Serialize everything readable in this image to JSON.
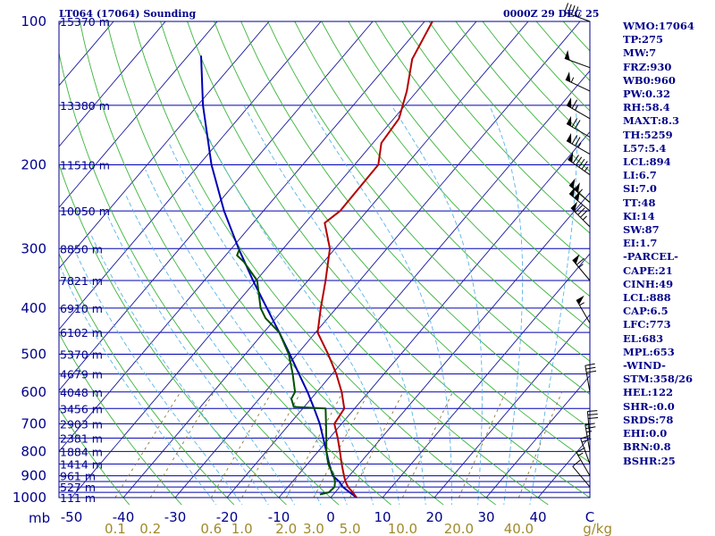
{
  "header": {
    "station": "LT064 (17064) Sounding",
    "time": "0000Z 29 DEC 25"
  },
  "indices": [
    "WMO:17064",
    "TP:275",
    "MW:7",
    "FRZ:930",
    "WB0:960",
    "PW:0.32",
    "RH:58.4",
    "MAXT:8.3",
    "TH:5259",
    "L57:5.4",
    "LCL:894",
    "LI:6.7",
    "SI:7.0",
    "TT:48",
    "KI:14",
    "SW:87",
    "EI:1.7",
    "-PARCEL-",
    "CAPE:21",
    "CINH:49",
    "LCL:888",
    "CAP:6.5",
    "LFC:773",
    "EL:683",
    "MPL:653",
    "-WIND-",
    "STM:358/26",
    "HEL:122",
    "SHR-:0.0",
    "SRDS:78",
    "EHI:0.0",
    "BRN:0.8",
    "BSHR:25"
  ],
  "colors": {
    "axis": "#00008b",
    "isobar": "#0000b0",
    "isotherm": "#1a1aa0",
    "dry_adiabat": "#3cb43c",
    "moist_adiabat": "#5ab4e6",
    "mixing_ratio": "#8c7a3c",
    "temperature": "#b40000",
    "dewpoint": "#005000",
    "parcel": "#0000b4",
    "wind_barb": "#000000"
  },
  "chart_data": {
    "type": "skew-t",
    "pressure_axis": {
      "unit": "mb",
      "ticks": [
        100,
        200,
        300,
        400,
        500,
        600,
        700,
        800,
        900,
        1000
      ]
    },
    "temperature_axis": {
      "ticks": [
        -50,
        -40,
        -30,
        -20,
        -10,
        0,
        10,
        20,
        30,
        40
      ],
      "tick_labels": [
        "-50",
        "-40",
        "-30",
        "-20",
        "-10",
        "0",
        "10",
        "20",
        "30",
        "40"
      ],
      "end_label": "C"
    },
    "mixing_ratio_axis": {
      "ticks": [
        0.1,
        0.2,
        0.6,
        1.0,
        2.0,
        3.0,
        5.0,
        10.0,
        20.0,
        40.0
      ],
      "tick_labels": [
        "0.1",
        "0.2",
        "0.6",
        "1.0",
        "2.0",
        "3.0",
        "5.0",
        "10.0",
        "20.0",
        "40.0"
      ],
      "unit": "g/kg"
    },
    "isobars": [
      100,
      150,
      200,
      250,
      300,
      350,
      400,
      450,
      500,
      550,
      600,
      650,
      700,
      750,
      800,
      850,
      900,
      925,
      950,
      975,
      1000
    ],
    "heights": [
      {
        "p": 100,
        "label": "15370 m"
      },
      {
        "p": 150,
        "label": "13380 m"
      },
      {
        "p": 200,
        "label": "11510 m"
      },
      {
        "p": 250,
        "label": "10050 m"
      },
      {
        "p": 300,
        "label": "8850 m"
      },
      {
        "p": 350,
        "label": "7821 m"
      },
      {
        "p": 400,
        "label": "6910 m"
      },
      {
        "p": 450,
        "label": "6102 m"
      },
      {
        "p": 500,
        "label": "5370 m"
      },
      {
        "p": 550,
        "label": "4679 m"
      },
      {
        "p": 600,
        "label": "4048 m"
      },
      {
        "p": 650,
        "label": "3456 m"
      },
      {
        "p": 700,
        "label": "2903 m"
      },
      {
        "p": 750,
        "label": "2381 m"
      },
      {
        "p": 800,
        "label": "1884 m"
      },
      {
        "p": 850,
        "label": "1414 m"
      },
      {
        "p": 900,
        "label": "961 m"
      },
      {
        "p": 950,
        "label": "527 m"
      },
      {
        "p": 1000,
        "label": "111 m"
      }
    ],
    "temperature_profile": [
      {
        "p": 1000,
        "t": 5.0
      },
      {
        "p": 975,
        "t": 3.4
      },
      {
        "p": 950,
        "t": 1.6
      },
      {
        "p": 925,
        "t": 0.2
      },
      {
        "p": 900,
        "t": -1.0
      },
      {
        "p": 850,
        "t": -3.4
      },
      {
        "p": 800,
        "t": -5.8
      },
      {
        "p": 750,
        "t": -8.4
      },
      {
        "p": 700,
        "t": -11.4
      },
      {
        "p": 650,
        "t": -12.0
      },
      {
        "p": 600,
        "t": -15.2
      },
      {
        "p": 550,
        "t": -19.2
      },
      {
        "p": 500,
        "t": -24.0
      },
      {
        "p": 450,
        "t": -29.6
      },
      {
        "p": 400,
        "t": -33.0
      },
      {
        "p": 350,
        "t": -36.6
      },
      {
        "p": 300,
        "t": -41.0
      },
      {
        "p": 265,
        "t": -46.2
      },
      {
        "p": 250,
        "t": -45.2
      },
      {
        "p": 200,
        "t": -45.4
      },
      {
        "p": 180,
        "t": -48.4
      },
      {
        "p": 160,
        "t": -49.0
      },
      {
        "p": 140,
        "t": -52.0
      },
      {
        "p": 120,
        "t": -56.2
      },
      {
        "p": 100,
        "t": -58.5
      },
      {
        "p": 85,
        "t": -60.5
      }
    ],
    "dewpoint_profile": [
      {
        "p": 985,
        "t": -2.6
      },
      {
        "p": 975,
        "t": -1.2
      },
      {
        "p": 950,
        "t": -1.0
      },
      {
        "p": 925,
        "t": -1.8
      },
      {
        "p": 900,
        "t": -3.0
      },
      {
        "p": 850,
        "t": -6.0
      },
      {
        "p": 800,
        "t": -8.4
      },
      {
        "p": 750,
        "t": -10.6
      },
      {
        "p": 700,
        "t": -13.0
      },
      {
        "p": 650,
        "t": -15.6
      },
      {
        "p": 645,
        "t": -22.0
      },
      {
        "p": 620,
        "t": -23.8
      },
      {
        "p": 600,
        "t": -24.2
      },
      {
        "p": 550,
        "t": -27.6
      },
      {
        "p": 500,
        "t": -31.6
      },
      {
        "p": 450,
        "t": -37.0
      },
      {
        "p": 420,
        "t": -42.0
      },
      {
        "p": 400,
        "t": -44.6
      },
      {
        "p": 350,
        "t": -49.8
      },
      {
        "p": 320,
        "t": -55.4
      },
      {
        "p": 310,
        "t": -57.8
      },
      {
        "p": 300,
        "t": -58.4
      }
    ],
    "parcel_profile": [
      {
        "p": 1000,
        "t": 5.0
      },
      {
        "p": 975,
        "t": 2.8
      },
      {
        "p": 950,
        "t": 0.6
      },
      {
        "p": 925,
        "t": -1.0
      },
      {
        "p": 900,
        "t": -3.2
      },
      {
        "p": 850,
        "t": -5.8
      },
      {
        "p": 800,
        "t": -8.4
      },
      {
        "p": 750,
        "t": -11.2
      },
      {
        "p": 700,
        "t": -14.2
      },
      {
        "p": 650,
        "t": -17.8
      },
      {
        "p": 600,
        "t": -21.8
      },
      {
        "p": 550,
        "t": -26.4
      },
      {
        "p": 500,
        "t": -31.4
      },
      {
        "p": 450,
        "t": -37.0
      },
      {
        "p": 400,
        "t": -43.4
      },
      {
        "p": 350,
        "t": -50.6
      },
      {
        "p": 300,
        "t": -58.6
      },
      {
        "p": 250,
        "t": -67.6
      },
      {
        "p": 200,
        "t": -77.6
      },
      {
        "p": 150,
        "t": -89.0
      },
      {
        "p": 118,
        "t": -97.5
      }
    ],
    "wind_barbs": [
      {
        "p": 950,
        "dir": 320,
        "spd": 10
      },
      {
        "p": 900,
        "dir": 330,
        "spd": 15
      },
      {
        "p": 850,
        "dir": 340,
        "spd": 20
      },
      {
        "p": 800,
        "dir": 350,
        "spd": 25
      },
      {
        "p": 750,
        "dir": 355,
        "spd": 30
      },
      {
        "p": 600,
        "dir": 350,
        "spd": 30
      },
      {
        "p": 430,
        "dir": 330,
        "spd": 55
      },
      {
        "p": 350,
        "dir": 320,
        "spd": 65
      },
      {
        "p": 270,
        "dir": 315,
        "spd": 85
      },
      {
        "p": 250,
        "dir": 310,
        "spd": 100
      },
      {
        "p": 240,
        "dir": 310,
        "spd": 105
      },
      {
        "p": 210,
        "dir": 305,
        "spd": 95
      },
      {
        "p": 190,
        "dir": 300,
        "spd": 75
      },
      {
        "p": 175,
        "dir": 300,
        "spd": 70
      },
      {
        "p": 160,
        "dir": 300,
        "spd": 65
      },
      {
        "p": 140,
        "dir": 295,
        "spd": 55
      },
      {
        "p": 125,
        "dir": 290,
        "spd": 50
      },
      {
        "p": 100,
        "dir": 290,
        "spd": 45
      }
    ]
  }
}
